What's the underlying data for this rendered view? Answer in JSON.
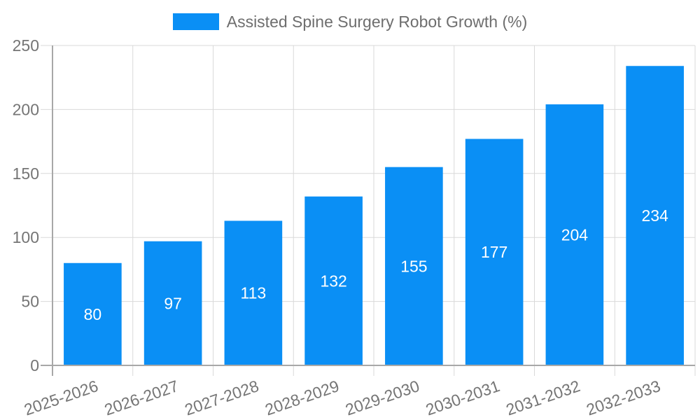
{
  "chart_data": {
    "type": "bar",
    "title": "Assisted Spine Surgery Robot Growth (%)",
    "categories": [
      "2025-2026",
      "2026-2027",
      "2027-2028",
      "2028-2029",
      "2029-2030",
      "2030-2031",
      "2031-2032",
      "2032-2033"
    ],
    "series": [
      {
        "name": "Assisted Spine Surgery Robot Growth (%)",
        "values": [
          80,
          97,
          113,
          132,
          155,
          177,
          204,
          234
        ]
      }
    ],
    "xlabel": "",
    "ylabel": "",
    "ylim": [
      0,
      250
    ],
    "yticks": [
      0,
      50,
      100,
      150,
      200,
      250
    ],
    "grid": true,
    "legend_position": "top",
    "bar_value_labels": true,
    "x_label_rotation_deg": -19
  },
  "colors": {
    "bar": "#0a8ff5",
    "bar_value_text": "#ffffff",
    "axis_line": "#a8a8a8",
    "grid_line": "#d9d9d9",
    "tick_text": "#757575",
    "legend_text": "#6e6e6e",
    "background": "#ffffff"
  }
}
